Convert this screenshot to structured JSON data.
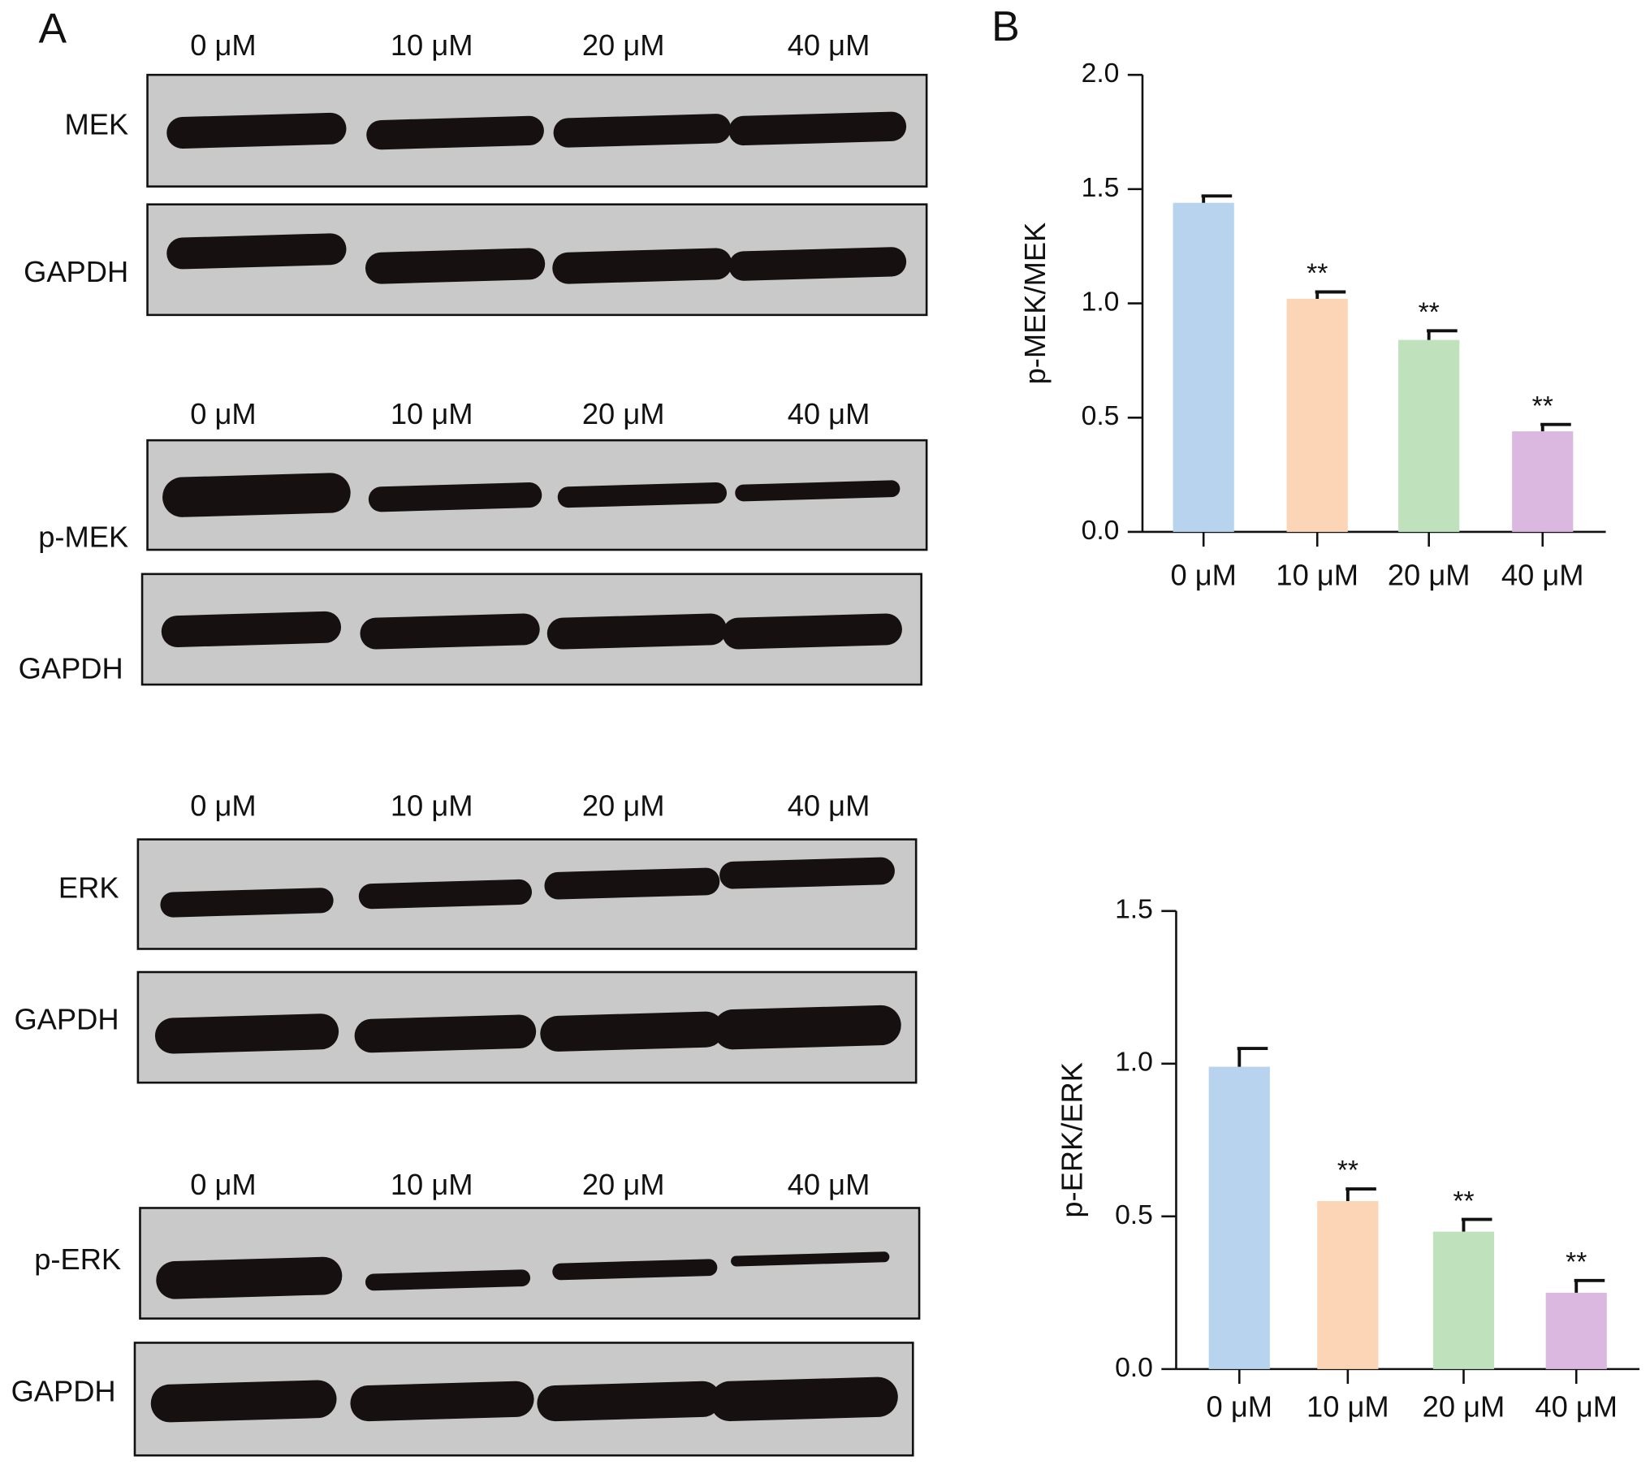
{
  "panels": [
    "A",
    "B"
  ],
  "blots": [
    {
      "lanes": [
        "0 μM",
        "10 μM",
        "20 μM",
        "40 μM"
      ],
      "rows": [
        "MEK",
        "GAPDH"
      ]
    },
    {
      "lanes": [
        "0 μM",
        "10 μM",
        "20 μM",
        "40 μM"
      ],
      "rows": [
        "p-MEK",
        "GAPDH"
      ]
    },
    {
      "lanes": [
        "0 μM",
        "10 μM",
        "20 μM",
        "40 μM"
      ],
      "rows": [
        "ERK",
        "GAPDH"
      ]
    },
    {
      "lanes": [
        "0 μM",
        "10 μM",
        "20 μM",
        "40 μM"
      ],
      "rows": [
        "p-ERK",
        "GAPDH"
      ]
    }
  ],
  "chart_data": [
    {
      "type": "bar",
      "y_label": "p-MEK/MEK",
      "categories": [
        "0 μM",
        "10 μM",
        "20 μM",
        "40 μM"
      ],
      "values": [
        1.44,
        1.02,
        0.84,
        0.44
      ],
      "errors": [
        0.03,
        0.03,
        0.04,
        0.03
      ],
      "significance": [
        null,
        "**",
        "**",
        "**"
      ],
      "colors": [
        "#b7d3ee",
        "#fbd5b6",
        "#bfe2bd",
        "#dbb8e0"
      ],
      "ylim": [
        0,
        2.0
      ],
      "yticks": [
        {
          "value": 0,
          "label": "0.0"
        },
        {
          "value": 0.5,
          "label": "0.5"
        },
        {
          "value": 1,
          "label": "1.0"
        },
        {
          "value": 1.5,
          "label": "1.5"
        },
        {
          "value": 2,
          "label": "2.0"
        }
      ]
    },
    {
      "type": "bar",
      "y_label": "p-ERK/ERK",
      "categories": [
        "0 μM",
        "10 μM",
        "20 μM",
        "40 μM"
      ],
      "values": [
        0.99,
        0.55,
        0.45,
        0.25
      ],
      "errors": [
        0.06,
        0.04,
        0.04,
        0.04
      ],
      "significance": [
        null,
        "**",
        "**",
        "**"
      ],
      "colors": [
        "#b7d3ee",
        "#fbd5b6",
        "#bfe2bd",
        "#dbb8e0"
      ],
      "ylim": [
        0,
        1.5
      ],
      "yticks": [
        {
          "value": 0,
          "label": "0.0"
        },
        {
          "value": 0.5,
          "label": "0.5"
        },
        {
          "value": 1,
          "label": "1.0"
        },
        {
          "value": 1.5,
          "label": "1.5"
        }
      ]
    }
  ]
}
